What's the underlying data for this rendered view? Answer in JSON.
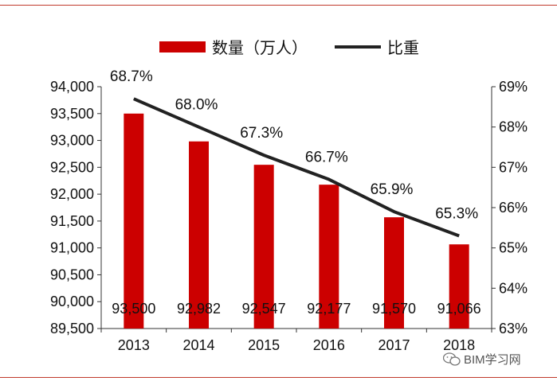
{
  "chart_data": {
    "type": "bar",
    "categories": [
      "2013",
      "2014",
      "2015",
      "2016",
      "2017",
      "2018"
    ],
    "series": [
      {
        "name": "数量（万人）",
        "type": "bar",
        "axis": "left",
        "color": "#cc0000",
        "values": [
          93500,
          92982,
          92547,
          92177,
          91570,
          91066
        ],
        "labels": [
          "93,500",
          "92,982",
          "92,547",
          "92,177",
          "91,570",
          "91,066"
        ]
      },
      {
        "name": "比重",
        "type": "line",
        "axis": "right",
        "color": "#222222",
        "values": [
          68.7,
          68.0,
          67.3,
          66.7,
          65.9,
          65.3
        ],
        "labels": [
          "68.7%",
          "68.0%",
          "67.3%",
          "66.7%",
          "65.9%",
          "65.3%"
        ]
      }
    ],
    "y_left": {
      "ylim": [
        89500,
        94000
      ],
      "ticks": [
        "89,500",
        "90,000",
        "90,500",
        "91,000",
        "91,500",
        "92,000",
        "92,500",
        "93,000",
        "93,500",
        "94,000"
      ]
    },
    "y_right": {
      "ylim": [
        63,
        69
      ],
      "ticks": [
        "63%",
        "64%",
        "65%",
        "66%",
        "67%",
        "68%",
        "69%"
      ]
    },
    "legend_position": "top",
    "grid": false
  },
  "watermark": {
    "text": "BIM学习网",
    "icon": "wechat-icon"
  }
}
